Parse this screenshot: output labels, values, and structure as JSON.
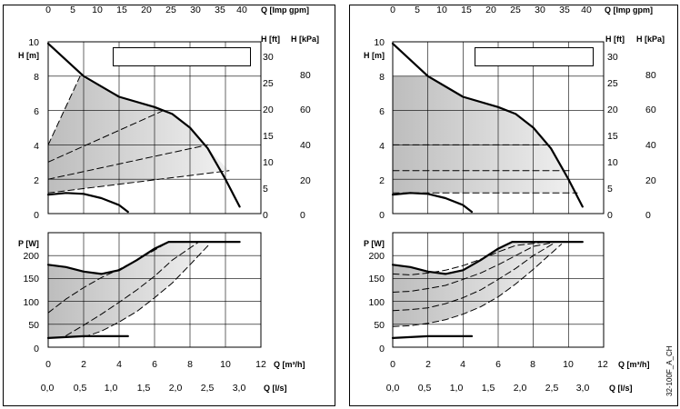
{
  "doc_code": "32-100F_A_CH",
  "chart_data": [
    {
      "type": "line",
      "name": "left-head",
      "axes": {
        "x": {
          "label": "Q [m³/h]",
          "min": 0,
          "max": 12,
          "ticks": [
            "0",
            "2",
            "4",
            "6",
            "8",
            "10",
            "12"
          ]
        },
        "x_top": {
          "label": "Q [Imp gpm]",
          "min": 0,
          "max": 44,
          "ticks": [
            "0",
            "5",
            "10",
            "15",
            "20",
            "25",
            "30",
            "35",
            "40"
          ]
        },
        "y": {
          "label": "H [m]",
          "min": 0,
          "max": 10,
          "ticks": [
            "0",
            "2",
            "4",
            "6",
            "8",
            "10"
          ]
        },
        "y_right1": {
          "label": "H [ft]",
          "ticks": [
            "0",
            "5",
            "10",
            "15",
            "20",
            "25",
            "30"
          ]
        },
        "y_right2": {
          "label": "H [kPa]",
          "ticks": [
            "0",
            "20",
            "40",
            "60",
            "80"
          ]
        }
      },
      "grid": true,
      "series": [
        {
          "role": "max-curve",
          "x": [
            0,
            2,
            4,
            6,
            7,
            8,
            9,
            10,
            10.8
          ],
          "y": [
            9.9,
            8.0,
            6.8,
            6.2,
            5.8,
            5.0,
            3.8,
            2.0,
            0.4
          ]
        },
        {
          "role": "min-curve",
          "x": [
            0,
            1,
            2,
            3,
            4,
            4.5
          ],
          "y": [
            1.1,
            1.2,
            1.15,
            0.9,
            0.5,
            0.1
          ]
        },
        {
          "role": "dashed",
          "x": [
            0,
            1.8
          ],
          "y": [
            4.0,
            8.0
          ]
        },
        {
          "role": "dashed",
          "x": [
            0,
            6.5
          ],
          "y": [
            3.0,
            6.0
          ]
        },
        {
          "role": "dashed",
          "x": [
            0,
            9.0
          ],
          "y": [
            2.0,
            4.0
          ]
        },
        {
          "role": "dashed",
          "x": [
            0,
            10.2
          ],
          "y": [
            1.2,
            2.5
          ]
        }
      ],
      "shaded_region": {
        "x": [
          0,
          1.8,
          4,
          6,
          7,
          8,
          9,
          10.2,
          0
        ],
        "y": [
          4.0,
          8.0,
          6.8,
          6.2,
          5.8,
          5.0,
          3.8,
          2.5,
          1.2
        ]
      }
    },
    {
      "type": "line",
      "name": "left-power",
      "axes": {
        "x": {
          "label": "Q [m³/h]",
          "min": 0,
          "max": 12,
          "ticks": [
            "0",
            "2",
            "4",
            "6",
            "8",
            "10",
            "12"
          ]
        },
        "x_bottom": {
          "label": "Q [l/s]",
          "ticks": [
            "0,0",
            "0,5",
            "1,0",
            "1,5",
            "2,0",
            "2,5",
            "3,0"
          ]
        },
        "y": {
          "label": "P [W]",
          "min": 0,
          "max": 250,
          "ticks": [
            "0",
            "50",
            "100",
            "150",
            "200"
          ]
        }
      },
      "grid": true,
      "series": [
        {
          "role": "max-curve",
          "x": [
            0,
            1,
            2,
            3,
            4,
            5,
            6,
            6.8,
            10.8
          ],
          "y": [
            180,
            175,
            165,
            160,
            168,
            190,
            215,
            230,
            230
          ]
        },
        {
          "role": "min-curve",
          "x": [
            0,
            2,
            4.5
          ],
          "y": [
            20,
            24,
            24
          ]
        },
        {
          "role": "dashed",
          "x": [
            0,
            1,
            2,
            3,
            4,
            5,
            6,
            6.8
          ],
          "y": [
            75,
            105,
            130,
            152,
            170,
            190,
            212,
            230
          ]
        },
        {
          "role": "dashed",
          "x": [
            1,
            2,
            3,
            4,
            5,
            6,
            7,
            8.5
          ],
          "y": [
            25,
            48,
            72,
            98,
            125,
            155,
            190,
            230
          ]
        },
        {
          "role": "dashed",
          "x": [
            2,
            3,
            4,
            5,
            6,
            7,
            8,
            9.1
          ],
          "y": [
            22,
            35,
            55,
            78,
            108,
            140,
            180,
            225
          ]
        }
      ],
      "shaded_region": {
        "x": [
          0,
          1,
          2,
          3,
          4,
          5,
          6,
          6.8,
          9.1,
          8,
          7,
          6,
          5,
          4,
          3,
          2,
          0
        ],
        "y": [
          180,
          175,
          165,
          160,
          168,
          190,
          215,
          230,
          225,
          180,
          140,
          108,
          78,
          55,
          35,
          22,
          20
        ]
      }
    },
    {
      "type": "line",
      "name": "right-head",
      "axes": {
        "x": {
          "label": "Q [m³/h]",
          "min": 0,
          "max": 12,
          "ticks": [
            "0",
            "2",
            "4",
            "6",
            "8",
            "10",
            "12"
          ]
        },
        "x_top": {
          "label": "Q [Imp gpm]",
          "min": 0,
          "max": 44,
          "ticks": [
            "0",
            "5",
            "10",
            "15",
            "20",
            "25",
            "30",
            "35",
            "40"
          ]
        },
        "y": {
          "label": "H [m]",
          "min": 0,
          "max": 10,
          "ticks": [
            "0",
            "2",
            "4",
            "6",
            "8",
            "10"
          ]
        },
        "y_right1": {
          "label": "H [ft]",
          "ticks": [
            "0",
            "5",
            "10",
            "15",
            "20",
            "25",
            "30"
          ]
        },
        "y_right2": {
          "label": "H [kPa]",
          "ticks": [
            "0",
            "20",
            "40",
            "60",
            "80"
          ]
        }
      },
      "grid": true,
      "series": [
        {
          "role": "max-curve",
          "x": [
            0,
            2,
            4,
            6,
            7,
            8,
            9,
            10,
            10.8
          ],
          "y": [
            9.9,
            8.0,
            6.8,
            6.2,
            5.8,
            5.0,
            3.8,
            2.0,
            0.4
          ]
        },
        {
          "role": "min-curve",
          "x": [
            0,
            1,
            2,
            3,
            4,
            4.5
          ],
          "y": [
            1.1,
            1.2,
            1.15,
            0.9,
            0.5,
            0.1
          ]
        },
        {
          "role": "dashed",
          "x": [
            0,
            8.8
          ],
          "y": [
            4.0,
            4.0
          ]
        },
        {
          "role": "dashed",
          "x": [
            0,
            10.2
          ],
          "y": [
            2.5,
            2.5
          ]
        },
        {
          "role": "dashed",
          "x": [
            0,
            10.5
          ],
          "y": [
            1.2,
            1.2
          ]
        }
      ],
      "shaded_region": {
        "x": [
          0,
          2,
          4,
          6,
          7,
          8,
          9,
          10,
          10.5,
          0
        ],
        "y": [
          8.0,
          8.0,
          6.8,
          6.2,
          5.8,
          5.0,
          3.8,
          2.0,
          1.2,
          1.2
        ]
      }
    },
    {
      "type": "line",
      "name": "right-power",
      "axes": {
        "x": {
          "label": "Q [m³/h]",
          "min": 0,
          "max": 12,
          "ticks": [
            "0",
            "2",
            "4",
            "6",
            "8",
            "10",
            "12"
          ]
        },
        "x_bottom": {
          "label": "Q [l/s]",
          "ticks": [
            "0,0",
            "0,5",
            "1,0",
            "1,5",
            "2,0",
            "2,5",
            "3,0"
          ]
        },
        "y": {
          "label": "P [W]",
          "min": 0,
          "max": 250,
          "ticks": [
            "0",
            "50",
            "100",
            "150",
            "200"
          ]
        }
      },
      "grid": true,
      "series": [
        {
          "role": "max-curve",
          "x": [
            0,
            1,
            2,
            3,
            4,
            5,
            6,
            6.8,
            10.8
          ],
          "y": [
            180,
            175,
            165,
            160,
            168,
            190,
            215,
            230,
            230
          ]
        },
        {
          "role": "min-curve",
          "x": [
            0,
            2,
            4.5
          ],
          "y": [
            20,
            24,
            24
          ]
        },
        {
          "role": "dashed",
          "x": [
            0,
            1,
            2,
            3,
            4,
            5,
            6,
            7,
            8.8
          ],
          "y": [
            160,
            158,
            162,
            168,
            178,
            192,
            208,
            222,
            230
          ]
        },
        {
          "role": "dashed",
          "x": [
            0,
            1,
            2,
            3,
            4,
            5,
            6,
            7,
            8,
            9.3
          ],
          "y": [
            120,
            122,
            128,
            135,
            148,
            162,
            180,
            200,
            220,
            230
          ]
        },
        {
          "role": "dashed",
          "x": [
            0,
            1,
            2,
            3,
            4,
            5,
            6,
            7,
            8,
            9.3
          ],
          "y": [
            80,
            82,
            86,
            95,
            108,
            125,
            148,
            172,
            200,
            230
          ]
        },
        {
          "role": "dashed",
          "x": [
            0,
            1,
            2,
            3,
            4,
            5,
            6,
            7,
            8,
            9.6
          ],
          "y": [
            45,
            47,
            52,
            60,
            72,
            88,
            110,
            138,
            170,
            225
          ]
        }
      ],
      "shaded_region": {
        "x": [
          0,
          1,
          2,
          3,
          4,
          5,
          6,
          6.8,
          9.6,
          8,
          7,
          6,
          5,
          4,
          3,
          2,
          0
        ],
        "y": [
          180,
          175,
          165,
          160,
          168,
          190,
          215,
          230,
          225,
          170,
          138,
          110,
          88,
          72,
          60,
          52,
          45
        ]
      }
    }
  ]
}
